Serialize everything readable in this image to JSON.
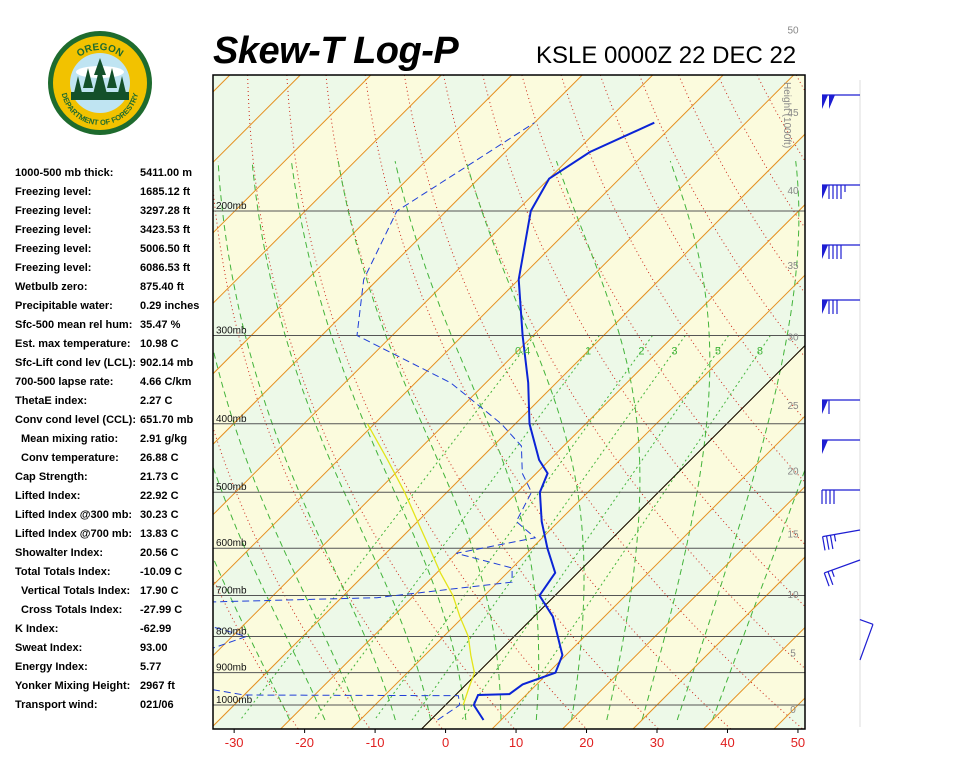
{
  "header": {
    "title": "Skew-T Log-P",
    "subtitle": "KSLE 0000Z 22 DEC 22"
  },
  "logo": {
    "text_top": "OREGON",
    "text_bottom": "DEPARTMENT OF FORESTRY",
    "colors": {
      "ring": "#1e6b2e",
      "gold": "#f2c200",
      "sky": "#bfe4f2",
      "tree": "#13502a"
    }
  },
  "stats": [
    {
      "label": "1000-500 mb thick:",
      "value": "5411.00 m"
    },
    {
      "label": "Freezing level:",
      "value": "1685.12 ft"
    },
    {
      "label": "Freezing level:",
      "value": "3297.28 ft"
    },
    {
      "label": "Freezing level:",
      "value": "3423.53 ft"
    },
    {
      "label": "Freezing level:",
      "value": "5006.50 ft"
    },
    {
      "label": "Freezing level:",
      "value": "6086.53 ft"
    },
    {
      "label": "Wetbulb zero:",
      "value": "875.40 ft"
    },
    {
      "label": "Precipitable water:",
      "value": "0.29 inches"
    },
    {
      "label": "Sfc-500 mean rel hum:",
      "value": "35.47 %"
    },
    {
      "label": "Est. max temperature:",
      "value": "10.98 C"
    },
    {
      "label": "Sfc-Lift cond lev (LCL):",
      "value": "902.14 mb"
    },
    {
      "label": "700-500 lapse rate:",
      "value": "4.66 C/km"
    },
    {
      "label": "ThetaE index:",
      "value": "2.27 C"
    },
    {
      "label": "Conv cond level (CCL):",
      "value": "651.70 mb"
    },
    {
      "label": "Mean mixing ratio:",
      "value": "2.91 g/kg",
      "indent": true
    },
    {
      "label": "Conv temperature:",
      "value": "26.88 C",
      "indent": true
    },
    {
      "label": "Cap Strength:",
      "value": "21.73 C"
    },
    {
      "label": "Lifted Index:",
      "value": "22.92 C"
    },
    {
      "label": "Lifted Index @300 mb:",
      "value": "30.23 C"
    },
    {
      "label": "Lifted Index @700 mb:",
      "value": "13.83 C"
    },
    {
      "label": "Showalter Index:",
      "value": "20.56 C"
    },
    {
      "label": "Total Totals Index:",
      "value": "-10.09 C"
    },
    {
      "label": "Vertical Totals Index:",
      "value": "17.90 C",
      "indent": true
    },
    {
      "label": "Cross Totals Index:",
      "value": "-27.99 C",
      "indent": true
    },
    {
      "label": "K Index:",
      "value": "-62.99"
    },
    {
      "label": "Sweat Index:",
      "value": "93.00"
    },
    {
      "label": "Energy Index:",
      "value": "5.77"
    },
    {
      "label": "Yonker Mixing Height:",
      "value": "2967 ft"
    },
    {
      "label": "Transport wind:",
      "value": "021/06"
    }
  ],
  "chart_data": {
    "type": "skew-t log-p",
    "x_ticks": [
      "-30",
      "-20",
      "-10",
      "0",
      "10",
      "20",
      "30",
      "40",
      "50"
    ],
    "x_values": [
      -30,
      -20,
      -10,
      0,
      10,
      20,
      30,
      40,
      50
    ],
    "xlim": [
      -33,
      51
    ],
    "pressure_labels": [
      "200mb",
      "300mb",
      "400mb",
      "500mb",
      "600mb",
      "700mb",
      "800mb",
      "900mb",
      "1000mb"
    ],
    "pressure_levels": [
      200,
      300,
      400,
      500,
      600,
      700,
      800,
      900,
      1000
    ],
    "height_axis_label": "Height (1000ft)",
    "height_ticks": [
      "0",
      "5",
      "10",
      "15",
      "20",
      "25",
      "30",
      "35",
      "40",
      "45",
      "50"
    ],
    "mixing_ratio_labels": [
      "0.4",
      "1",
      "2",
      "3",
      "5",
      "8"
    ],
    "temperature_profile": [
      {
        "p": 1050,
        "t": 7.5
      },
      {
        "p": 1000,
        "t": 4.0
      },
      {
        "p": 968,
        "t": 3.2
      },
      {
        "p": 965,
        "t": 7.5
      },
      {
        "p": 935,
        "t": 8.0
      },
      {
        "p": 900,
        "t": 11.0
      },
      {
        "p": 850,
        "t": 9.5
      },
      {
        "p": 800,
        "t": 6.2
      },
      {
        "p": 750,
        "t": 2.7
      },
      {
        "p": 700,
        "t": -2.2
      },
      {
        "p": 650,
        "t": -3.2
      },
      {
        "p": 600,
        "t": -7.8
      },
      {
        "p": 550,
        "t": -12.4
      },
      {
        "p": 500,
        "t": -16.8
      },
      {
        "p": 470,
        "t": -18.4
      },
      {
        "p": 450,
        "t": -21.5
      },
      {
        "p": 400,
        "t": -28.0
      },
      {
        "p": 350,
        "t": -34.0
      },
      {
        "p": 300,
        "t": -41.5
      },
      {
        "p": 250,
        "t": -50.0
      },
      {
        "p": 200,
        "t": -58.0
      },
      {
        "p": 180,
        "t": -60.0
      },
      {
        "p": 165,
        "t": -58.0
      },
      {
        "p": 150,
        "t": -53.0
      }
    ],
    "dewpoint_profile": [
      {
        "p": 1050,
        "t": 1.0
      },
      {
        "p": 1000,
        "t": 2.0
      },
      {
        "p": 970,
        "t": 0.5
      },
      {
        "p": 968,
        "t": -30.0
      },
      {
        "p": 930,
        "t": -42.0
      },
      {
        "p": 880,
        "t": -48.0
      },
      {
        "p": 840,
        "t": -42.0
      },
      {
        "p": 800,
        "t": -38.0
      },
      {
        "p": 760,
        "t": -48.0
      },
      {
        "p": 720,
        "t": -60.0
      },
      {
        "p": 705,
        "t": -25.0
      },
      {
        "p": 670,
        "t": -8.0
      },
      {
        "p": 640,
        "t": -10.0
      },
      {
        "p": 610,
        "t": -20.0
      },
      {
        "p": 580,
        "t": -11.0
      },
      {
        "p": 550,
        "t": -16.0
      },
      {
        "p": 500,
        "t": -18.0
      },
      {
        "p": 470,
        "t": -22.0
      },
      {
        "p": 430,
        "t": -26.0
      },
      {
        "p": 400,
        "t": -32.0
      },
      {
        "p": 350,
        "t": -45.0
      },
      {
        "p": 300,
        "t": -65.0
      },
      {
        "p": 250,
        "t": -72.0
      },
      {
        "p": 200,
        "t": -77.0
      },
      {
        "p": 170,
        "t": -73.0
      },
      {
        "p": 150,
        "t": -70.0
      }
    ],
    "parcel_path": [
      {
        "p": 1000,
        "t": 2.5
      },
      {
        "p": 950,
        "t": 1.0
      },
      {
        "p": 900,
        "t": -0.5
      },
      {
        "p": 850,
        "t": -3.5
      },
      {
        "p": 800,
        "t": -6.5
      },
      {
        "p": 750,
        "t": -10.5
      },
      {
        "p": 700,
        "t": -14.5
      },
      {
        "p": 650,
        "t": -19.5
      },
      {
        "p": 600,
        "t": -24.5
      },
      {
        "p": 550,
        "t": -30.0
      },
      {
        "p": 500,
        "t": -36.0
      },
      {
        "p": 450,
        "t": -43.0
      },
      {
        "p": 400,
        "t": -51.0
      }
    ],
    "colors": {
      "background": "#edf9e8",
      "temperature": "#0b24d6",
      "dewpoint": "#1f3fd8",
      "parcel": "#e4e41a",
      "isotherm": "#e59020",
      "dry_adiabat": "#cc2a1a",
      "moist_adiabat": "#43b43a",
      "pressure_line": "#555555",
      "x_tick_text": "#e02020"
    },
    "wind_barbs": {
      "color": "#1e1ed2",
      "points": [
        {
          "dir": 270,
          "speed": 100
        },
        {
          "dir": 270,
          "speed": 95
        },
        {
          "dir": 270,
          "speed": 90
        },
        {
          "dir": 270,
          "speed": 80
        },
        {
          "dir": 270,
          "speed": 60
        },
        {
          "dir": 270,
          "speed": 50
        },
        {
          "dir": 270,
          "speed": 40
        },
        {
          "dir": 260,
          "speed": 35
        },
        {
          "dir": 250,
          "speed": 25
        },
        {
          "dir": 20,
          "speed": 10
        }
      ]
    }
  }
}
